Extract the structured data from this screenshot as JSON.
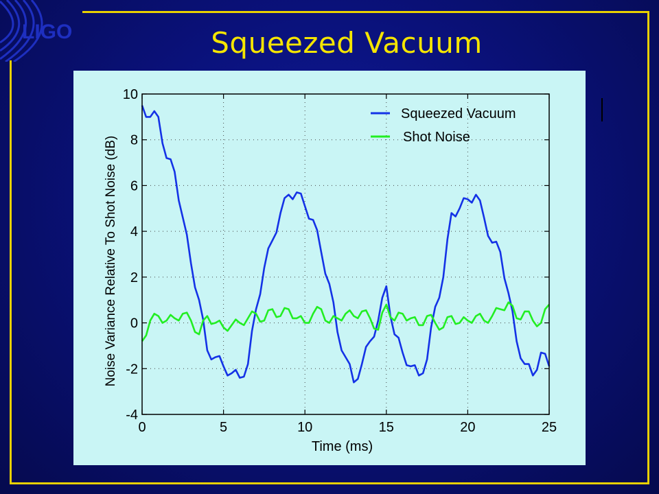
{
  "slide": {
    "title": "Squeezed Vacuum",
    "logo_text": "LIGO"
  },
  "colors": {
    "background": "#0a117a",
    "frame": "#e8d000",
    "title": "#f5e500",
    "plot_background": "#c9f5f5",
    "squeezed": "#1432e6",
    "shot": "#22ee22"
  },
  "chart_data": {
    "type": "line",
    "title": "",
    "xlabel": "Time (ms)",
    "ylabel": "Noise Variance Relative To Shot Noise (dB)",
    "xlim": [
      0,
      25
    ],
    "ylim": [
      -4,
      10
    ],
    "x_ticks": [
      "0",
      "5",
      "10",
      "15",
      "20",
      "25"
    ],
    "y_ticks": [
      "10",
      "8",
      "6",
      "4",
      "2",
      "0",
      "-2",
      "-4"
    ],
    "grid": true,
    "legend_position": "top-right",
    "series": [
      {
        "name": "Squeezed Vacuum",
        "color": "#1432e6",
        "x": [
          0,
          0.5,
          1,
          1.5,
          2,
          2.5,
          3,
          3.5,
          4,
          4.5,
          5,
          5.5,
          6,
          6.5,
          7,
          7.5,
          8,
          8.5,
          9,
          9.5,
          10,
          10.5,
          11,
          11.5,
          12,
          12.5,
          13,
          13.5,
          14,
          14.5,
          15,
          15.5,
          16,
          16.5,
          17,
          17.5,
          18,
          18.5,
          19,
          19.5,
          20,
          20.5,
          21,
          21.5,
          22,
          22.5,
          23,
          23.5,
          24,
          24.5,
          25
        ],
        "y": [
          9.5,
          9.0,
          9.0,
          7.2,
          6.6,
          4.6,
          2.6,
          1.0,
          -1.2,
          -1.5,
          -1.9,
          -2.2,
          -2.4,
          -1.8,
          0.6,
          2.4,
          3.6,
          4.8,
          5.6,
          5.7,
          5.1,
          4.5,
          3.1,
          1.7,
          -0.4,
          -1.5,
          -2.6,
          -1.8,
          -0.8,
          0.1,
          1.6,
          -0.5,
          -1.3,
          -1.9,
          -2.3,
          -1.6,
          0.7,
          2.0,
          4.8,
          5.0,
          5.4,
          5.6,
          4.6,
          3.5,
          3.1,
          1.3,
          -0.8,
          -1.8,
          -2.3,
          -1.3,
          -1.9
        ]
      },
      {
        "name": "Shot Noise",
        "color": "#22ee22",
        "x": [
          0,
          0.5,
          1,
          1.5,
          2,
          2.5,
          3,
          3.5,
          4,
          4.5,
          5,
          5.5,
          6,
          6.5,
          7,
          7.5,
          8,
          8.5,
          9,
          9.5,
          10,
          10.5,
          11,
          11.5,
          12,
          12.5,
          13,
          13.5,
          14,
          14.5,
          15,
          15.5,
          16,
          16.5,
          17,
          17.5,
          18,
          18.5,
          19,
          19.5,
          20,
          20.5,
          21,
          21.5,
          22,
          22.5,
          23,
          23.5,
          24,
          24.5,
          25
        ],
        "y": [
          -0.8,
          0.1,
          0.3,
          0.1,
          0.2,
          0.4,
          0.1,
          -0.5,
          0.3,
          0.0,
          -0.2,
          -0.1,
          0.0,
          0.2,
          0.4,
          0.1,
          0.6,
          0.3,
          0.6,
          0.2,
          0.0,
          0.4,
          0.6,
          0.0,
          0.2,
          0.4,
          0.3,
          0.5,
          0.2,
          -0.3,
          0.8,
          0.1,
          0.4,
          0.2,
          -0.1,
          0.3,
          0.0,
          -0.2,
          0.3,
          0.0,
          0.1,
          0.3,
          0.1,
          0.3,
          0.6,
          0.9,
          0.2,
          0.5,
          0.1,
          0.0,
          0.8
        ]
      }
    ]
  }
}
